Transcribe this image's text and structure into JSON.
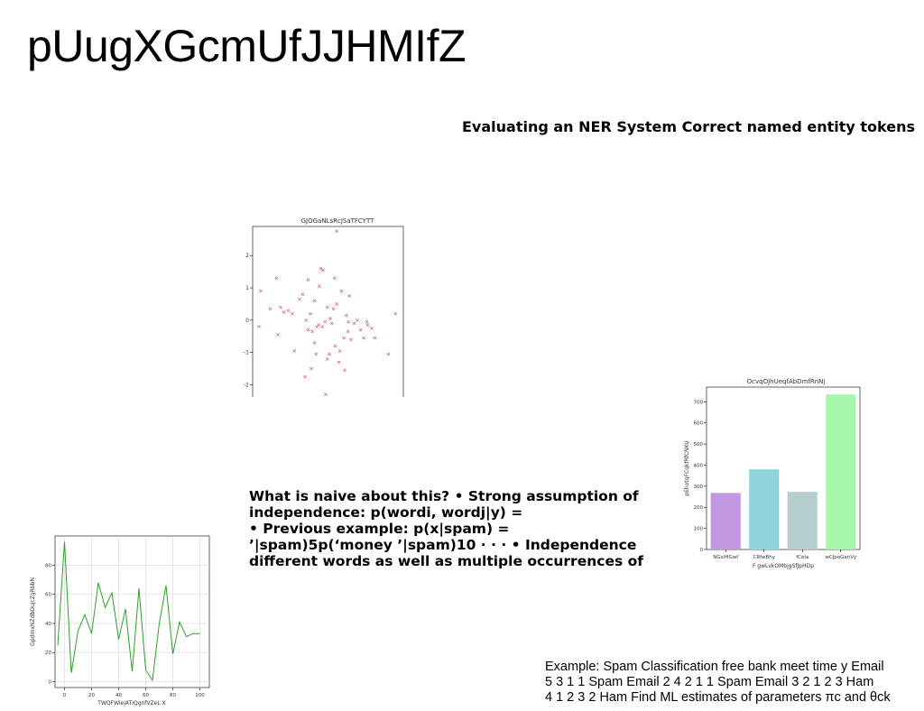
{
  "slide": {
    "title": "pUugXGcmUfJJHMIfZ",
    "subtitle": "Evaluating an NER System Correct named entity tokens",
    "body_lines": [
      "What is naive about this? • Strong assumption of",
      "independence: p(wordi, wordj|y) =",
      "• Previous example: p(x|spam) =",
      "’|spam)5p(‘money ’|spam)10 · · · • Independence",
      "different words as well as multiple occurrences of"
    ],
    "example_lines": [
      "Example: Spam Classification free bank meet time y Email",
      "5 3 1 1 Spam Email 2 4 2 1 1 Spam Email 3 2 1 2 3 Ham",
      "4 1 2 3 2 Ham Find ML estimates of parameters πc and θck"
    ]
  },
  "chart_data": [
    {
      "type": "scatter",
      "title": "GJOGaNLsRcJSaTFCYTT",
      "xlabel": "",
      "ylabel": "",
      "xlim": [
        -2.3,
        2.45
      ],
      "ylim": [
        -2.6,
        2.9
      ],
      "xticks": [
        -2,
        -1,
        0,
        1,
        2
      ],
      "yticks": [
        -2,
        -1,
        0,
        1,
        2
      ],
      "color": "#d05a8a",
      "marker": "x",
      "grid": false,
      "x": [
        0.35,
        -1.55,
        -2.05,
        -1.75,
        -1.42,
        -1.32,
        -1.18,
        -1.05,
        -0.98,
        -0.82,
        -0.72,
        -0.62,
        -0.55,
        -0.48,
        -0.42,
        -0.35,
        -0.28,
        -0.22,
        -0.15,
        -0.08,
        -0.02,
        0.05,
        0.12,
        0.2,
        0.28,
        0.35,
        0.42,
        0.5,
        0.58,
        0.65,
        0.72,
        0.8,
        0.9,
        1.0,
        1.1,
        1.2,
        1.32,
        1.45,
        1.55,
        1.98,
        2.2,
        -2.1,
        -1.5,
        -0.65,
        -0.45,
        -0.3,
        -0.1,
        0.0,
        0.15,
        0.3,
        0.45,
        0.6,
        0.75,
        -0.55,
        -0.35,
        0.05,
        -0.2,
        0.25,
        1.3,
        0.7
      ],
      "y": [
        2.75,
        1.3,
        0.9,
        0.35,
        0.4,
        0.25,
        0.3,
        0.2,
        -0.95,
        0.65,
        0.8,
        0.0,
        -0.3,
        0.2,
        -0.35,
        0.6,
        -0.2,
        -0.15,
        1.6,
        1.55,
        -0.05,
        0.4,
        -1.05,
        -0.1,
        1.3,
        0.5,
        -1.3,
        0.9,
        -0.55,
        0.15,
        -0.05,
        -0.6,
        -0.1,
        0.0,
        -0.3,
        -0.55,
        -0.15,
        -0.25,
        -0.55,
        -1.05,
        0.2,
        -0.2,
        -0.45,
        -1.75,
        -1.5,
        -1.05,
        -0.2,
        -2.3,
        0.05,
        -0.8,
        -0.95,
        -1.55,
        0.75,
        1.25,
        -0.7,
        -1.2,
        1.05,
        0.35,
        -0.05,
        -0.35
      ]
    },
    {
      "type": "bar",
      "title": "OcvqOJhUeqfAbDmfRnNj",
      "xlabel": "F gwLvkOMbjgSfJpHDp",
      "ylabel": "pEhotqFCqkfRfCNKU",
      "categories": [
        "NGxlHGwf",
        "CRfwBhy",
        "fCela",
        "wCJpoGanVy"
      ],
      "values": [
        268,
        380,
        273,
        735
      ],
      "colors": [
        "#c097e0",
        "#8fd4dc",
        "#b7cfcf",
        "#a4f7ac"
      ],
      "ylim": [
        0,
        770
      ],
      "yticks": [
        0,
        100,
        200,
        300,
        400,
        500,
        600,
        700
      ]
    },
    {
      "type": "line",
      "title": "",
      "xlabel": "TWQFWiejATIQgnfVZeL X",
      "ylabel": "GpdrnxNZdbOujcZgRbbN",
      "xlim": [
        -7,
        107
      ],
      "ylim": [
        -4,
        100
      ],
      "xticks": [
        0,
        20,
        40,
        60,
        80,
        100
      ],
      "yticks": [
        0,
        20,
        40,
        60,
        80
      ],
      "grid": true,
      "color": "#2ca02c",
      "x": [
        -5,
        0,
        5,
        10,
        15,
        20,
        25,
        30,
        35,
        40,
        45,
        50,
        55,
        60,
        65,
        70,
        75,
        80,
        85,
        90,
        95,
        100
      ],
      "y": [
        25,
        96,
        6,
        35,
        46,
        33,
        68,
        51,
        61,
        29,
        50,
        7,
        64,
        8,
        1,
        40,
        66,
        19,
        41,
        31,
        33,
        33
      ]
    }
  ]
}
